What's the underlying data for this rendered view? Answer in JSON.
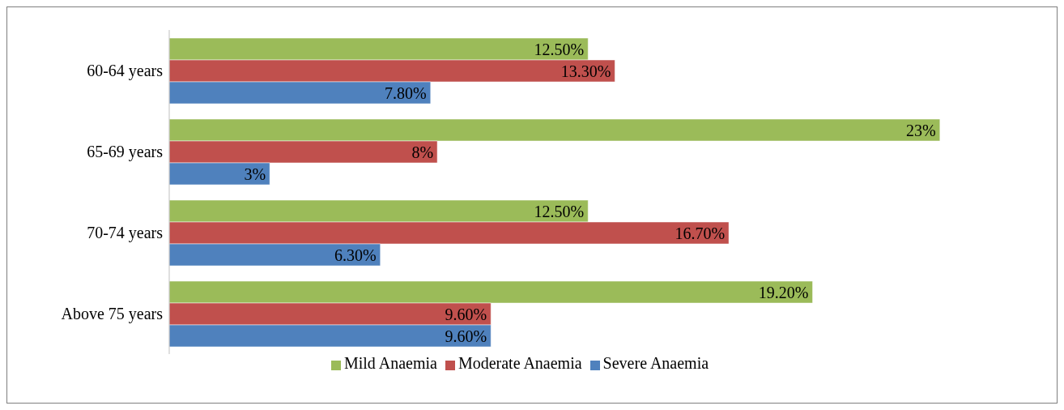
{
  "chart_data": {
    "type": "bar",
    "orientation": "horizontal",
    "categories": [
      "60-64 years",
      "65-69 years",
      "70-74 years",
      "Above 75 years"
    ],
    "series": [
      {
        "name": "Mild Anaemia",
        "color": "#9bbb59",
        "values": [
          12.5,
          23,
          12.5,
          19.2
        ],
        "value_labels": [
          "12.50%",
          "23%",
          "12.50%",
          "19.20%"
        ]
      },
      {
        "name": "Moderate Anaemia",
        "color": "#c0504d",
        "values": [
          13.3,
          8,
          16.7,
          9.6
        ],
        "value_labels": [
          "13.30%",
          "8%",
          "16.70%",
          "9.60%"
        ]
      },
      {
        "name": "Severe Anaemia",
        "color": "#4f81bd",
        "values": [
          7.8,
          3,
          6.3,
          9.6
        ],
        "value_labels": [
          "7.80%",
          "3%",
          "6.30%",
          "9.60%"
        ]
      }
    ],
    "legend": "bottom",
    "grid": false
  }
}
